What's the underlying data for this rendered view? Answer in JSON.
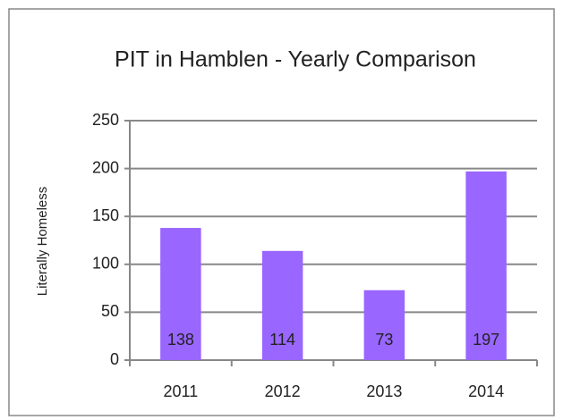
{
  "chart_data": {
    "type": "bar",
    "title": "PIT in Hamblen - Yearly Comparison",
    "y_label": "Literally Homeless",
    "categories": [
      "2011",
      "2012",
      "2013",
      "2014"
    ],
    "values": [
      138,
      114,
      73,
      197
    ],
    "color": "#9966ff",
    "ylim": [
      0,
      250
    ],
    "yticks": [
      0,
      50,
      100,
      150,
      200,
      250
    ],
    "grid": true
  }
}
